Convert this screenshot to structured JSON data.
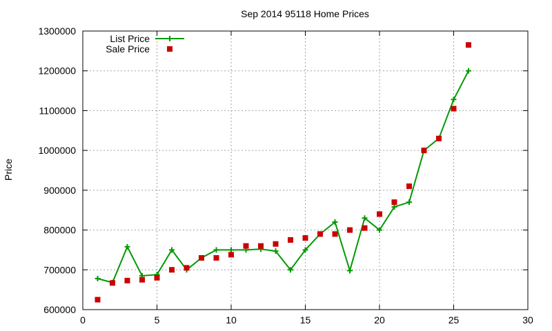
{
  "chart_data": {
    "type": "line",
    "title": "Sep 2014 95118 Home Prices",
    "xlabel": "",
    "ylabel": "Price",
    "xlim": [
      0,
      30
    ],
    "ylim": [
      600000,
      1300000
    ],
    "x_ticks": [
      0,
      5,
      10,
      15,
      20,
      25,
      30
    ],
    "y_ticks": [
      600000,
      700000,
      800000,
      900000,
      1000000,
      1100000,
      1200000,
      1300000
    ],
    "x_tick_labels": [
      "0",
      "5",
      "10",
      "15",
      "20",
      "25",
      "30"
    ],
    "y_tick_labels": [
      "600000",
      "700000",
      "800000",
      "900000",
      "1000000",
      "1100000",
      "1200000",
      "1300000"
    ],
    "grid": true,
    "legend_position": "top-left",
    "series": [
      {
        "name": "List Price",
        "style": "line-with-plus-markers",
        "color": "#009900",
        "x": [
          1,
          2,
          3,
          4,
          5,
          6,
          7,
          8,
          9,
          10,
          11,
          12,
          13,
          14,
          15,
          16,
          17,
          18,
          19,
          20,
          21,
          22,
          23,
          24,
          25,
          26
        ],
        "y": [
          678000,
          668000,
          758000,
          685000,
          688000,
          750000,
          700000,
          730000,
          750000,
          750000,
          750000,
          752000,
          747000,
          700000,
          750000,
          790000,
          820000,
          698000,
          830000,
          800000,
          858000,
          870000,
          1000000,
          1030000,
          1128000,
          1200000
        ]
      },
      {
        "name": "Sale Price",
        "style": "square-markers",
        "color": "#cc0000",
        "x": [
          1,
          2,
          3,
          4,
          5,
          6,
          7,
          8,
          9,
          10,
          11,
          12,
          13,
          14,
          15,
          16,
          17,
          18,
          19,
          20,
          21,
          22,
          23,
          24,
          25,
          26
        ],
        "y": [
          625000,
          667000,
          673000,
          675000,
          680000,
          700000,
          705000,
          730000,
          730000,
          738000,
          760000,
          760000,
          765000,
          775000,
          780000,
          790000,
          790000,
          800000,
          805000,
          840000,
          870000,
          910000,
          1000000,
          1030000,
          1105000,
          1265000
        ]
      }
    ]
  }
}
